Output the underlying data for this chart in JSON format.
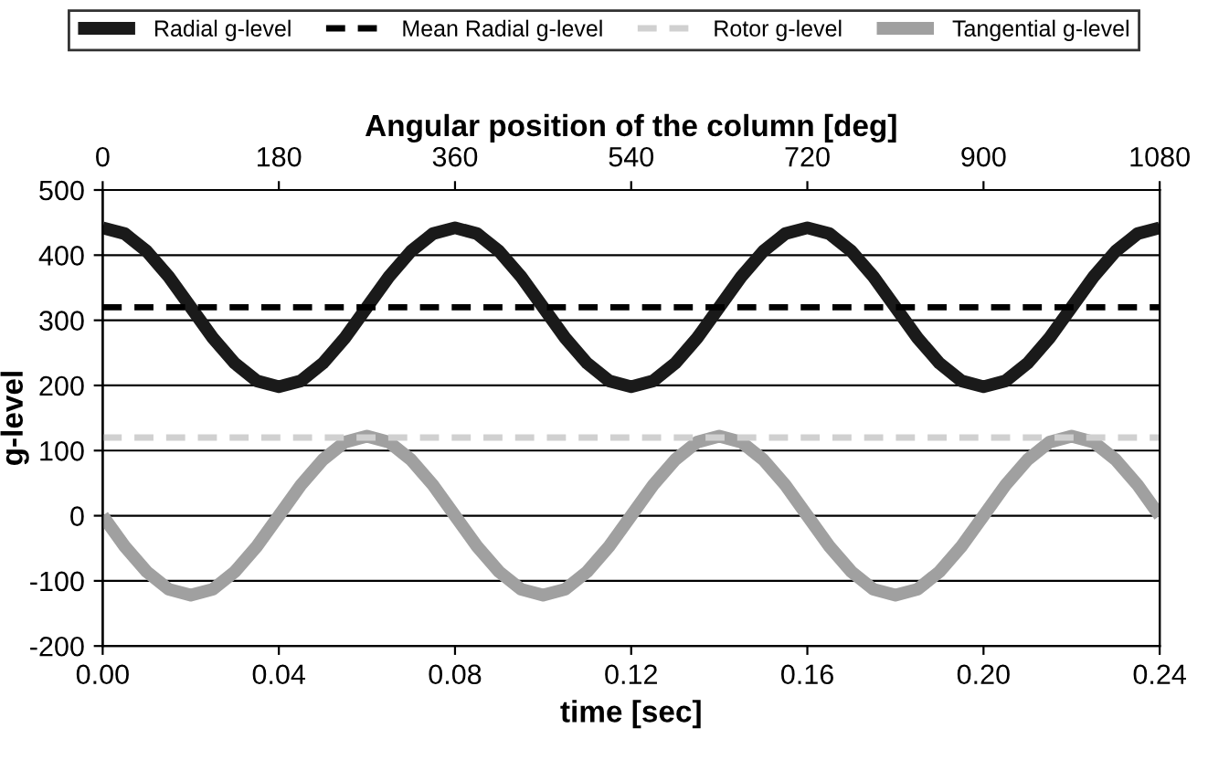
{
  "chart_data": {
    "type": "line",
    "x2label": "Angular position of the column [deg]",
    "xlabel": "time [sec]",
    "ylabel": "g-level",
    "x": [
      0,
      0.005,
      0.01,
      0.015,
      0.02,
      0.025,
      0.03,
      0.035,
      0.04,
      0.045,
      0.05,
      0.055,
      0.06,
      0.065,
      0.07,
      0.075,
      0.08,
      0.085,
      0.09,
      0.095,
      0.1,
      0.105,
      0.11,
      0.115,
      0.12,
      0.125,
      0.13,
      0.135,
      0.14,
      0.145,
      0.15,
      0.155,
      0.16,
      0.165,
      0.17,
      0.175,
      0.18,
      0.185,
      0.19,
      0.195,
      0.2,
      0.205,
      0.21,
      0.215,
      0.22,
      0.225,
      0.23,
      0.235,
      0.24
    ],
    "series": [
      {
        "name": "Radial g-level",
        "color": "#1a1a1a",
        "line_style": "solid",
        "values": [
          442,
          433,
          406,
          367,
          320,
          273,
          234,
          207,
          198,
          207,
          234,
          273,
          320,
          367,
          406,
          433,
          442,
          433,
          406,
          367,
          320,
          273,
          234,
          207,
          198,
          207,
          234,
          273,
          320,
          367,
          406,
          433,
          442,
          433,
          406,
          367,
          320,
          273,
          234,
          207,
          198,
          207,
          234,
          273,
          320,
          367,
          406,
          433,
          442
        ]
      },
      {
        "name": "Tangential g-level",
        "color": "#a0a0a0",
        "line_style": "solid",
        "values": [
          0,
          -47,
          -86,
          -113,
          -122,
          -113,
          -86,
          -47,
          0,
          47,
          86,
          113,
          122,
          113,
          86,
          47,
          0,
          -47,
          -86,
          -113,
          -122,
          -113,
          -86,
          -47,
          0,
          47,
          86,
          113,
          122,
          113,
          86,
          47,
          0,
          -47,
          -86,
          -113,
          -122,
          -113,
          -86,
          -47,
          0,
          47,
          86,
          113,
          122,
          113,
          86,
          47,
          0
        ]
      }
    ],
    "xlim": [
      0,
      0.24
    ],
    "xticks": [
      {
        "value": 0,
        "label": "0.00"
      },
      {
        "value": 0.04,
        "label": "0.04"
      },
      {
        "value": 0.08,
        "label": "0.08"
      },
      {
        "value": 0.12,
        "label": "0.12"
      },
      {
        "value": 0.16,
        "label": "0.16"
      },
      {
        "value": 0.2,
        "label": "0.20"
      },
      {
        "value": 0.24,
        "label": "0.24"
      }
    ],
    "x2lim": [
      0,
      1080
    ],
    "x2ticks": [
      0,
      180,
      360,
      540,
      720,
      900,
      1080
    ],
    "ylim": [
      -200,
      500
    ],
    "yticks": [
      -200,
      -100,
      0,
      100,
      200,
      300,
      400,
      500
    ],
    "ref_lines": [
      {
        "axis": "y",
        "value": 320,
        "label": "Mean Radial g-level",
        "color": "#000000",
        "line_style": "dashed"
      },
      {
        "axis": "y",
        "value": 120,
        "label": "Rotor g-level",
        "color": "#d0d0d0",
        "line_style": "dashed"
      }
    ],
    "grid": "y",
    "legend": "top",
    "marker": "none"
  }
}
